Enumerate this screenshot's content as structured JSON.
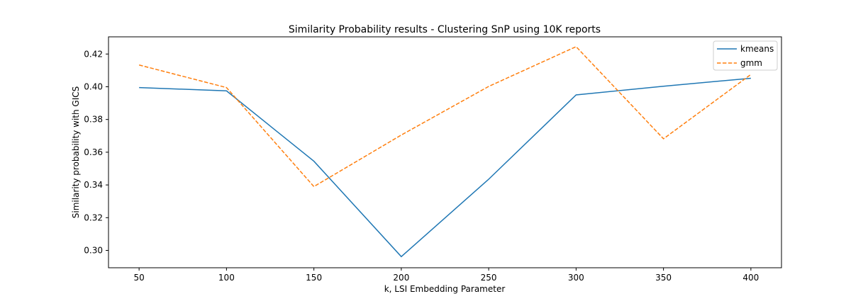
{
  "chart_data": {
    "type": "line",
    "title": "Similarity Probability results - Clustering SnP using 10K reports",
    "xlabel": "k, LSI Embedding Parameter",
    "ylabel": "Similarity probability with GICS",
    "x": [
      50,
      100,
      150,
      200,
      250,
      300,
      350,
      400
    ],
    "xticks": [
      "50",
      "100",
      "150",
      "200",
      "250",
      "300",
      "350",
      "400"
    ],
    "yticks": [
      "0.30",
      "0.32",
      "0.34",
      "0.36",
      "0.38",
      "0.40",
      "0.42"
    ],
    "xlim": [
      32.5,
      417.5
    ],
    "ylim": [
      0.2894,
      0.4305
    ],
    "grid": false,
    "legend_position": "top-right",
    "series": [
      {
        "name": "kmeans",
        "color": "#1f77b4",
        "style": "solid",
        "values": [
          0.3995,
          0.3975,
          0.3545,
          0.2962,
          0.3435,
          0.395,
          0.4003,
          0.4052
        ]
      },
      {
        "name": "gmm",
        "color": "#ff7f0e",
        "style": "dashed",
        "values": [
          0.4133,
          0.3995,
          0.339,
          0.3705,
          0.4002,
          0.4245,
          0.3682,
          0.4075
        ]
      }
    ]
  }
}
